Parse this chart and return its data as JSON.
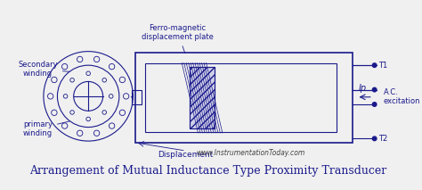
{
  "bg_color": "#f0f0f0",
  "line_color": "#1a1a8c",
  "title": "Arrangement of Mutual Inductance Type Proximity Transducer",
  "title_fontsize": 9,
  "label_color": "#1a1a8c",
  "website": "www.InstrumentationToday.com",
  "labels": {
    "ferro_magnetic": "Ferro-magnetic\ndisplacement plate",
    "secondary_winding": "Secondary\nwinding",
    "primary_winding": "primary\nwinding",
    "displacement": "Displacement",
    "ip": "Ip",
    "ac_excitation": "A.C.\nexcitation",
    "t1": "T1",
    "t2": "T2"
  }
}
